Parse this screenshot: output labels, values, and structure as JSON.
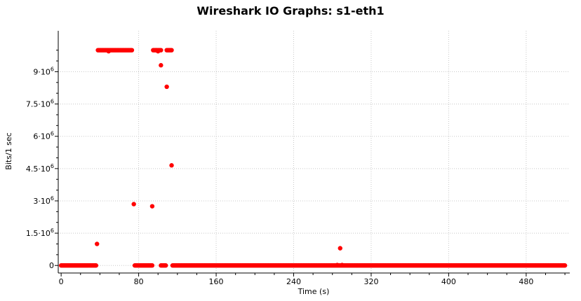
{
  "chart_data": {
    "type": "scatter",
    "title": "Wireshark IO Graphs: s1-eth1",
    "xlabel": "Time (s)",
    "ylabel": "Bits/1 sec",
    "xlim": [
      -3,
      525
    ],
    "ylim": [
      -350000,
      10900000
    ],
    "x_ticks": [
      0,
      80,
      160,
      240,
      320,
      400,
      480
    ],
    "y_ticks": [
      {
        "value": 0,
        "base": "0",
        "exp": ""
      },
      {
        "value": 1500000,
        "base": "1.5·10",
        "exp": "6"
      },
      {
        "value": 3000000,
        "base": "3·10",
        "exp": "6"
      },
      {
        "value": 4500000,
        "base": "4.5·10",
        "exp": "6"
      },
      {
        "value": 6000000,
        "base": "6·10",
        "exp": "6"
      },
      {
        "value": 7500000,
        "base": "7.5·10",
        "exp": "6"
      },
      {
        "value": 9000000,
        "base": "9·10",
        "exp": "6"
      }
    ],
    "grid": true,
    "series": [
      {
        "color": "#ff0000",
        "points": [
          [
            37,
            1000000
          ],
          [
            75,
            2850000
          ],
          [
            94,
            2750000
          ],
          [
            103,
            9300000
          ],
          [
            109,
            8300000
          ],
          [
            114,
            4650000
          ],
          [
            288,
            800000
          ],
          [
            285,
            20000
          ],
          [
            290,
            20000
          ],
          [
            49,
            9950000
          ],
          [
            100,
            9950000
          ],
          [
            98,
            10000000
          ]
        ],
        "plateaus": [
          {
            "from": 38,
            "to": 73,
            "value": 10000000
          },
          {
            "from": 95,
            "to": 103,
            "value": 10000000
          },
          {
            "from": 109,
            "to": 114,
            "value": 10000000
          }
        ],
        "zero_ranges": [
          {
            "from": 0,
            "to": 36
          },
          {
            "from": 76,
            "to": 94
          },
          {
            "from": 103,
            "to": 108
          },
          {
            "from": 115,
            "to": 520
          }
        ]
      }
    ]
  }
}
